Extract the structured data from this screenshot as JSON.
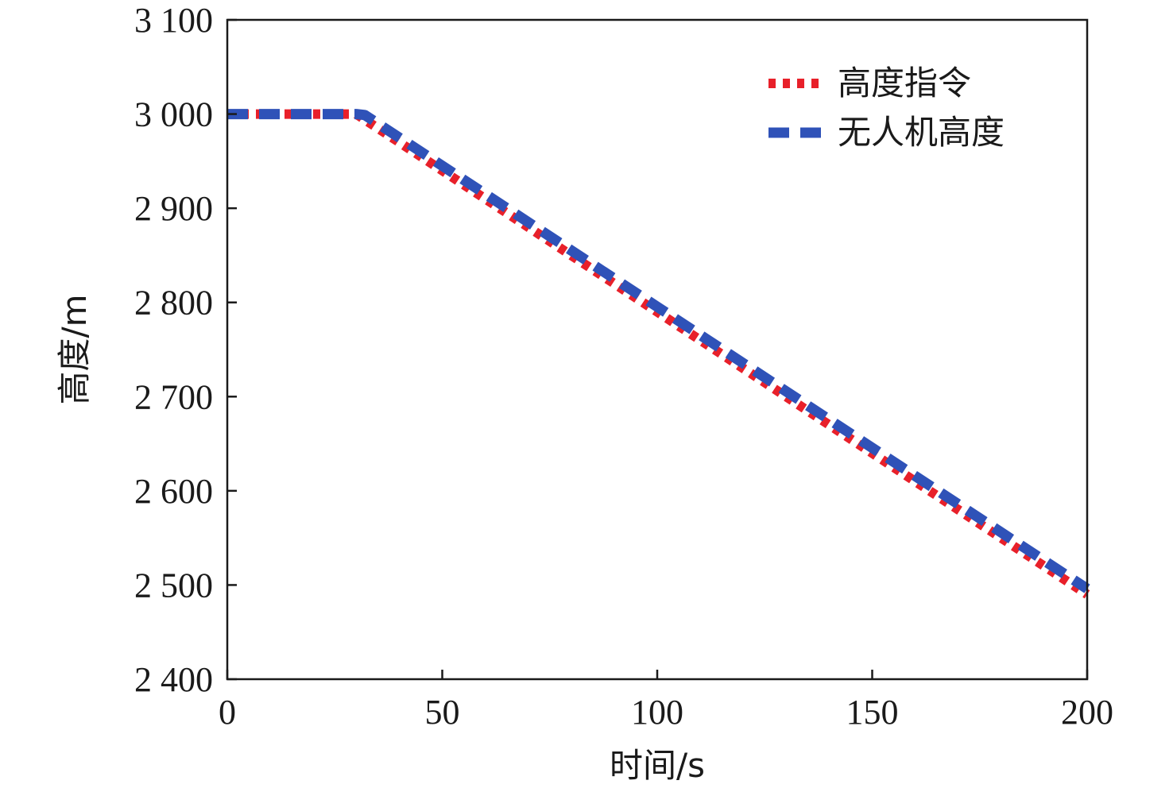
{
  "chart_data": {
    "type": "line",
    "title": "",
    "xlabel": "时间/s",
    "ylabel": "高度/m",
    "xlim": [
      0,
      200
    ],
    "ylim": [
      2400,
      3100
    ],
    "xticks": [
      0,
      50,
      100,
      150,
      200
    ],
    "xtick_labels": [
      "0",
      "50",
      "100",
      "150",
      "200"
    ],
    "yticks": [
      2400,
      2500,
      2600,
      2700,
      2800,
      2900,
      3000,
      3100
    ],
    "ytick_labels": [
      "2 400",
      "2 500",
      "2 600",
      "2 700",
      "2 800",
      "2 900",
      "3 000",
      "3 100"
    ],
    "grid": false,
    "legend_position": "top-right",
    "series": [
      {
        "name": "高度指令",
        "style": "dotted",
        "color": "#e8202a",
        "x": [
          0,
          30,
          200
        ],
        "y": [
          3000,
          3000,
          2490
        ]
      },
      {
        "name": "无人机高度",
        "style": "dashed",
        "color": "#2f52b8",
        "x": [
          0,
          30,
          32,
          200
        ],
        "y": [
          3000,
          3000,
          2999,
          2496
        ]
      }
    ]
  }
}
